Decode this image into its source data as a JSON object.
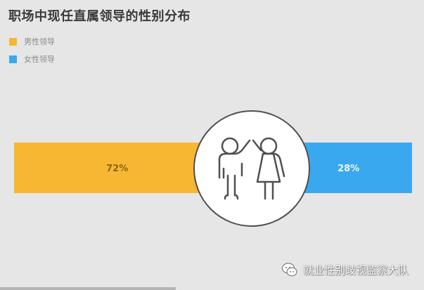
{
  "chart_data": {
    "type": "bar",
    "title": "职场中现任直属领导的性别分布",
    "series": [
      {
        "name": "男性领导",
        "value": 72,
        "label": "72%",
        "color": "#f7b733"
      },
      {
        "name": "女性领导",
        "value": 28,
        "label": "28%",
        "color": "#3aa8ee"
      }
    ],
    "legend_position": "top-left",
    "center_icon": "man-woman-icon"
  },
  "watermark": {
    "icon": "wechat-icon",
    "text": "就业性别歧视监察大队"
  }
}
